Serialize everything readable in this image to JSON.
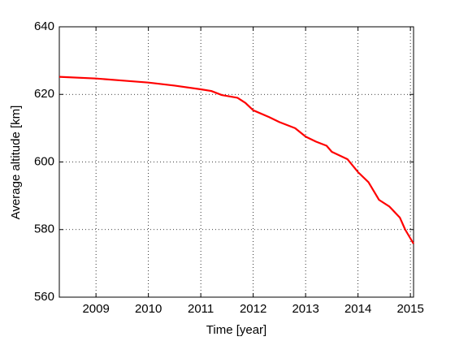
{
  "chart_data": {
    "type": "line",
    "xlabel": "Time [year]",
    "ylabel": "Average altitude [km]",
    "x": [
      2008.3,
      2009,
      2009.5,
      2010,
      2010.5,
      2011,
      2011.2,
      2011.4,
      2011.7,
      2011.85,
      2012,
      2012.3,
      2012.5,
      2012.8,
      2013,
      2013.2,
      2013.4,
      2013.5,
      2013.8,
      2014,
      2014.2,
      2014.4,
      2014.6,
      2014.8,
      2014.9,
      2015.06
    ],
    "series": [
      {
        "color": "#ff0000",
        "values": [
          625.2,
          624.7,
          624.1,
          623.5,
          622.6,
          621.5,
          621,
          619.8,
          619,
          617.5,
          615.3,
          613.3,
          611.8,
          610,
          607.5,
          606,
          604.8,
          603,
          600.8,
          597,
          594,
          588.8,
          586.8,
          583.5,
          580,
          575.8
        ]
      }
    ],
    "xlim": [
      2008.3,
      2015.06
    ],
    "xticks": [
      2009,
      2010,
      2011,
      2012,
      2013,
      2014,
      2015
    ],
    "ylim": [
      560,
      640
    ],
    "yticks": [
      560,
      580,
      600,
      620,
      640
    ],
    "grid": true
  }
}
